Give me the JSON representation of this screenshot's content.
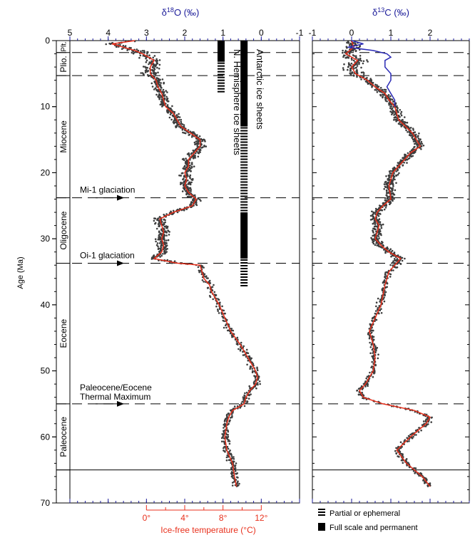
{
  "chart_data": {
    "type": "scatter",
    "ylabel": "Age (Ma)",
    "ylim": [
      0,
      70
    ],
    "yticks": [
      0,
      10,
      20,
      30,
      40,
      50,
      60,
      70
    ],
    "o18": {
      "title": "δ18O (‰)",
      "title_main": "δ",
      "title_sup": "18",
      "title_rest": "O (‰)",
      "xlim": [
        5,
        -1
      ],
      "ticks": [
        5,
        4,
        3,
        2,
        1,
        0,
        -1
      ],
      "tick_labels": [
        "5",
        "4",
        "3",
        "2",
        "1",
        "0",
        "-1"
      ]
    },
    "c13": {
      "title": "δ13C (‰)",
      "title_main": "δ",
      "title_sup": "13",
      "title_rest": "C (‰)",
      "xlim": [
        -1,
        3
      ],
      "ticks": [
        -1,
        0,
        1,
        2
      ],
      "tick_labels": [
        "-1",
        "0",
        "1",
        "2"
      ]
    },
    "temperature": {
      "label": "Ice-free temperature (°C)",
      "ticks": [
        "0°",
        "4°",
        "8°",
        "12°"
      ],
      "tick_values_d18O": [
        3.0,
        2.0,
        1.0,
        0.0
      ],
      "color": "#e8301c"
    },
    "epochs": [
      {
        "name": "Plt.",
        "from": 0,
        "to": 1.8
      },
      {
        "name": "Plio.",
        "from": 1.8,
        "to": 5.3
      },
      {
        "name": "Miocene",
        "from": 5.3,
        "to": 23.8
      },
      {
        "name": "Oligocene",
        "from": 23.8,
        "to": 33.7
      },
      {
        "name": "Eocene",
        "from": 33.7,
        "to": 55.0
      },
      {
        "name": "Paleocene",
        "from": 55.0,
        "to": 65.0
      }
    ],
    "dashed_lines": [
      1.8,
      5.3,
      23.8,
      33.7,
      55.0
    ],
    "solid_lines": [
      65.0
    ],
    "events": [
      {
        "label": "Mi-1 glaciation",
        "age": 23.8
      },
      {
        "label": "Oi-1 glaciation",
        "age": 33.7
      },
      {
        "label": "Paleocene/Eocene",
        "label2": "Thermal Maximum",
        "age": 55.0
      }
    ],
    "ice_sheets": [
      {
        "label": "N. Hemisphere ice sheets",
        "x_d18O": 1.05,
        "segments": [
          {
            "from": 0,
            "to": 3.2,
            "type": "full"
          },
          {
            "from": 3.2,
            "to": 8,
            "type": "partial"
          }
        ]
      },
      {
        "label": "Antarctic ice sheets",
        "x_d18O": 0.45,
        "segments": [
          {
            "from": 0,
            "to": 13,
            "type": "full"
          },
          {
            "from": 13,
            "to": 26,
            "type": "partial"
          },
          {
            "from": 26,
            "to": 33,
            "type": "full"
          },
          {
            "from": 33,
            "to": 37,
            "type": "partial"
          }
        ]
      }
    ],
    "legend": [
      {
        "label": "Partial or ephemeral",
        "type": "partial"
      },
      {
        "label": "Full scale and permanent",
        "type": "full"
      }
    ],
    "o18_curve": [
      [
        0,
        3.3
      ],
      [
        0.5,
        3.9
      ],
      [
        1,
        3.6
      ],
      [
        1.5,
        3.3
      ],
      [
        2,
        3.1
      ],
      [
        3,
        2.8
      ],
      [
        4,
        2.9
      ],
      [
        5,
        2.9
      ],
      [
        6,
        2.75
      ],
      [
        7,
        2.7
      ],
      [
        8,
        2.6
      ],
      [
        9,
        2.55
      ],
      [
        10,
        2.5
      ],
      [
        11,
        2.3
      ],
      [
        12,
        2.2
      ],
      [
        13,
        2.1
      ],
      [
        14,
        1.85
      ],
      [
        15,
        1.6
      ],
      [
        16,
        1.6
      ],
      [
        17,
        1.75
      ],
      [
        18,
        1.9
      ],
      [
        19,
        1.9
      ],
      [
        20,
        2.0
      ],
      [
        21,
        1.95
      ],
      [
        22,
        2.0
      ],
      [
        23,
        1.9
      ],
      [
        24,
        1.7
      ],
      [
        25,
        1.8
      ],
      [
        26,
        2.3
      ],
      [
        27,
        2.65
      ],
      [
        28,
        2.6
      ],
      [
        29,
        2.55
      ],
      [
        30,
        2.6
      ],
      [
        31,
        2.55
      ],
      [
        32,
        2.6
      ],
      [
        33,
        2.8
      ],
      [
        33.7,
        2.2
      ],
      [
        34,
        1.6
      ],
      [
        35,
        1.55
      ],
      [
        36,
        1.5
      ],
      [
        37,
        1.35
      ],
      [
        38,
        1.3
      ],
      [
        39,
        1.2
      ],
      [
        40,
        1.1
      ],
      [
        42,
        0.95
      ],
      [
        44,
        0.8
      ],
      [
        46,
        0.55
      ],
      [
        48,
        0.35
      ],
      [
        50,
        0.15
      ],
      [
        51,
        0.1
      ],
      [
        52,
        0.15
      ],
      [
        53,
        0.3
      ],
      [
        54,
        0.4
      ],
      [
        55,
        0.45
      ],
      [
        56,
        0.75
      ],
      [
        57,
        0.85
      ],
      [
        58,
        0.9
      ],
      [
        60,
        0.95
      ],
      [
        62,
        0.9
      ],
      [
        64,
        0.75
      ],
      [
        66,
        0.7
      ],
      [
        67.5,
        0.65
      ]
    ],
    "c13_curve": [
      [
        0,
        0.0
      ],
      [
        1,
        0.05
      ],
      [
        2,
        -0.15
      ],
      [
        3,
        0.15
      ],
      [
        4,
        0.0
      ],
      [
        5,
        0.1
      ],
      [
        6,
        0.4
      ],
      [
        7,
        0.6
      ],
      [
        8,
        0.85
      ],
      [
        9,
        0.95
      ],
      [
        10,
        1.1
      ],
      [
        12,
        1.2
      ],
      [
        14,
        1.55
      ],
      [
        15,
        1.65
      ],
      [
        16,
        1.75
      ],
      [
        17,
        1.5
      ],
      [
        18,
        1.35
      ],
      [
        19,
        1.2
      ],
      [
        20,
        1.05
      ],
      [
        22,
        0.95
      ],
      [
        24,
        1.0
      ],
      [
        25,
        0.8
      ],
      [
        26,
        0.65
      ],
      [
        27,
        0.6
      ],
      [
        28,
        0.7
      ],
      [
        29,
        0.65
      ],
      [
        30,
        0.6
      ],
      [
        31,
        0.75
      ],
      [
        32,
        0.95
      ],
      [
        33,
        1.25
      ],
      [
        34,
        1.1
      ],
      [
        35,
        0.95
      ],
      [
        37,
        0.85
      ],
      [
        40,
        0.75
      ],
      [
        42,
        0.6
      ],
      [
        44,
        0.45
      ],
      [
        46,
        0.55
      ],
      [
        48,
        0.6
      ],
      [
        50,
        0.55
      ],
      [
        52,
        0.35
      ],
      [
        53,
        0.2
      ],
      [
        54,
        0.3
      ],
      [
        55,
        0.8
      ],
      [
        56,
        1.6
      ],
      [
        57,
        2.0
      ],
      [
        58,
        1.9
      ],
      [
        59,
        1.7
      ],
      [
        60,
        1.5
      ],
      [
        62,
        1.15
      ],
      [
        64,
        1.4
      ],
      [
        66,
        1.8
      ],
      [
        67.5,
        2.0
      ]
    ],
    "c13_blue_curve": [
      [
        0,
        0.0
      ],
      [
        0.5,
        0.3
      ],
      [
        1,
        -0.1
      ],
      [
        1.5,
        0.55
      ],
      [
        2,
        0.9
      ],
      [
        2.5,
        1.0
      ],
      [
        3,
        0.85
      ],
      [
        4,
        0.85
      ],
      [
        5,
        1.0
      ],
      [
        6,
        1.0
      ],
      [
        7,
        0.9
      ],
      [
        8,
        1.0
      ],
      [
        9,
        1.1
      ],
      [
        10,
        1.1
      ]
    ]
  }
}
